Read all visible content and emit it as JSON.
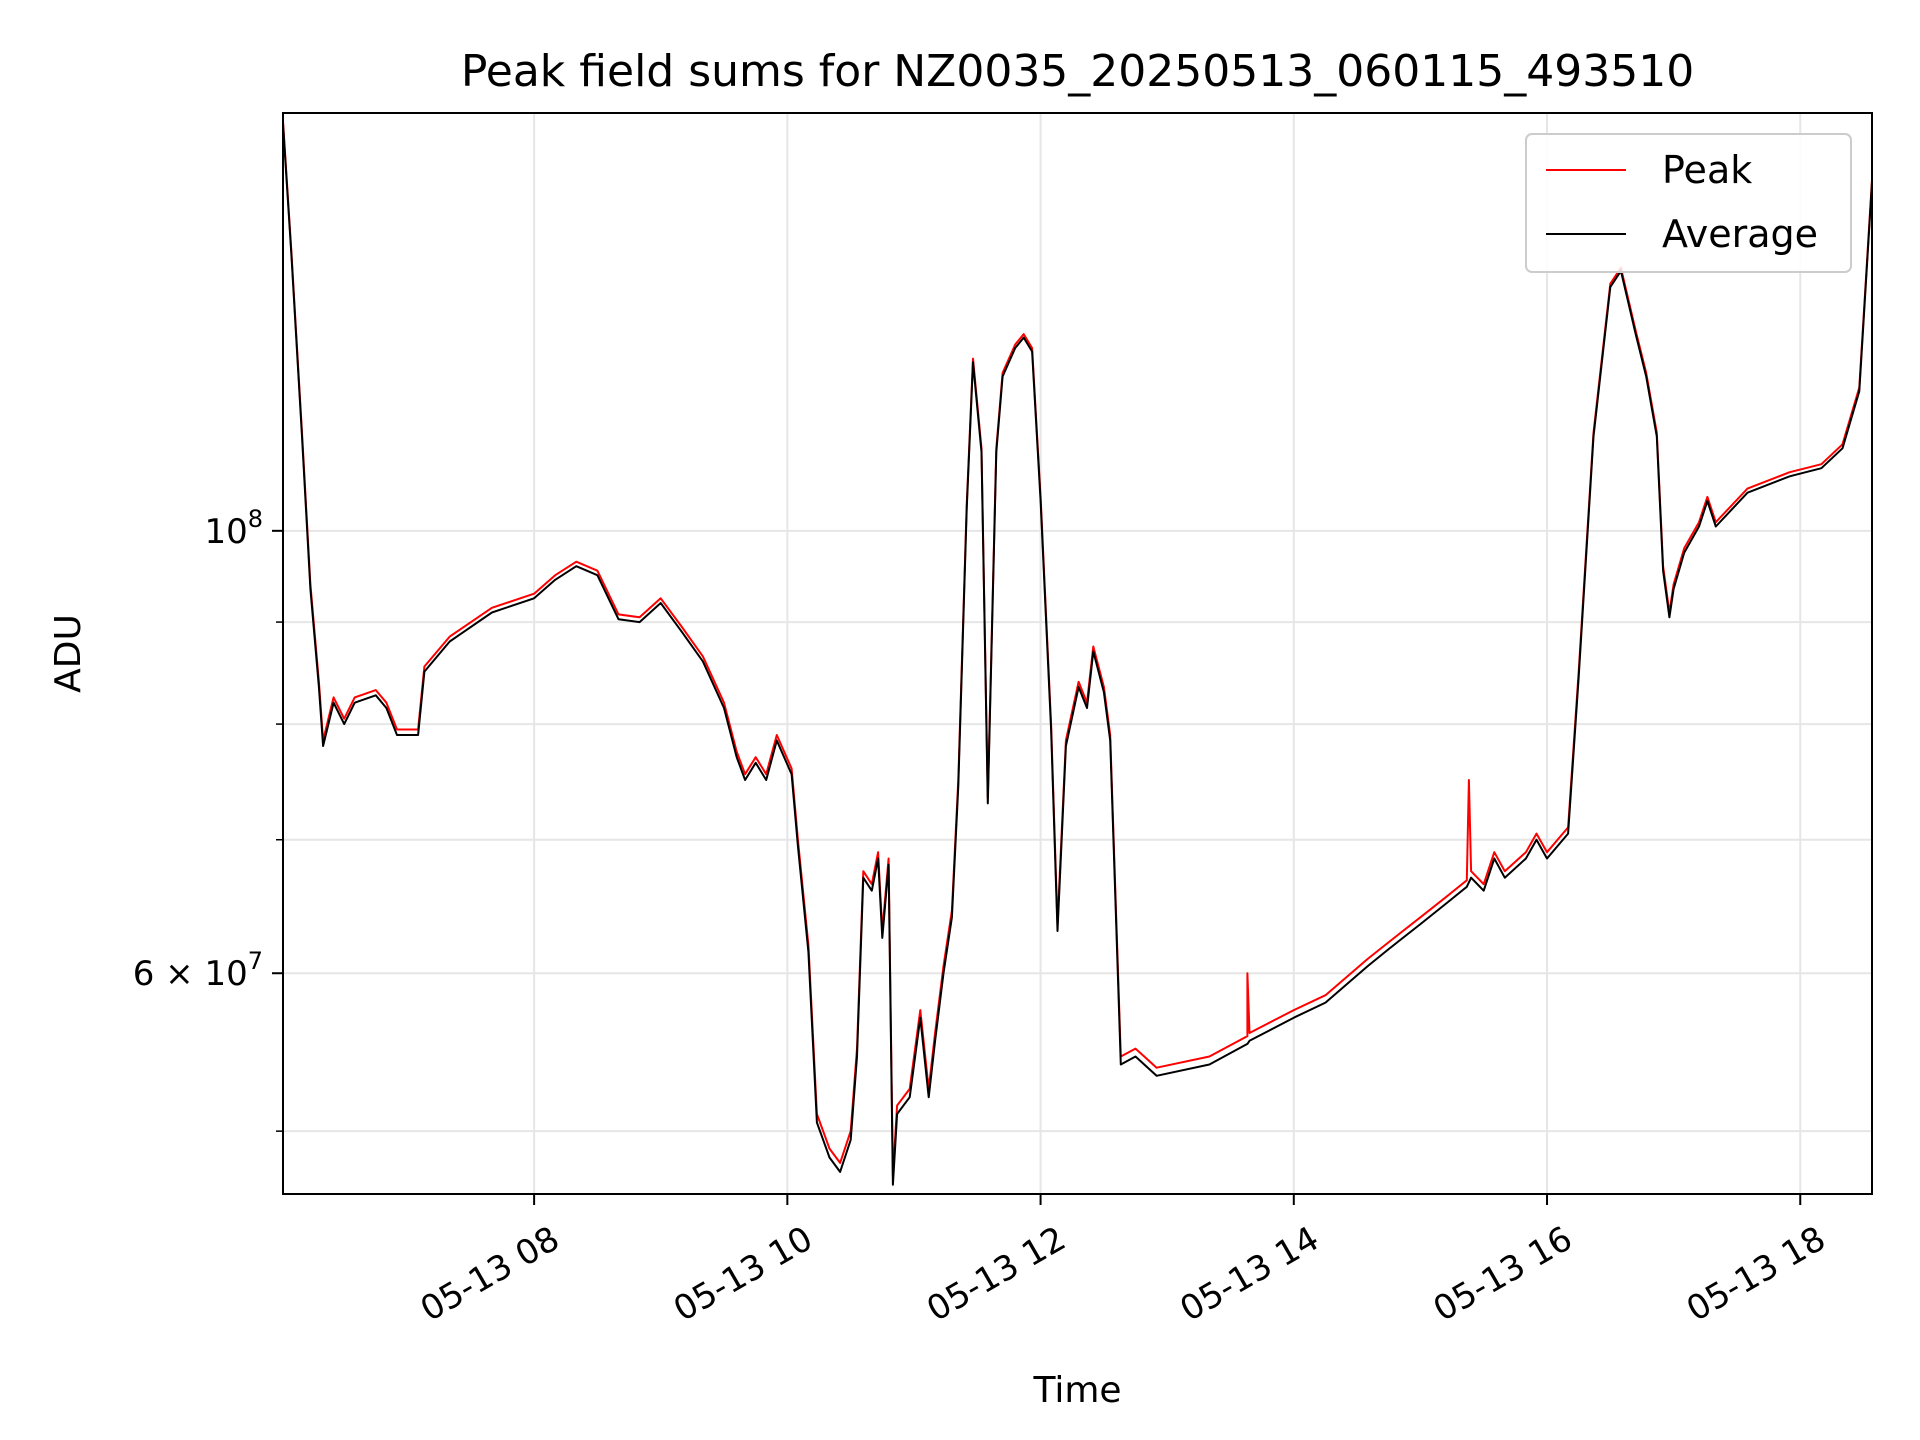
{
  "chart_data": {
    "type": "line",
    "title": "Peak field sums for NZ0035_20250513_060115_493510",
    "xlabel": "Time",
    "ylabel": "ADU",
    "y_scale": "log",
    "grid": true,
    "legend_position": "top-right",
    "xlim": [
      "2025-05-13 06:01",
      "2025-05-13 18:34"
    ],
    "ylim": [
      46500000,
      162000000
    ],
    "x_ticks": [
      {
        "value": "2025-05-13 08:00",
        "label": "05-13 08"
      },
      {
        "value": "2025-05-13 10:00",
        "label": "05-13 10"
      },
      {
        "value": "2025-05-13 12:00",
        "label": "05-13 12"
      },
      {
        "value": "2025-05-13 14:00",
        "label": "05-13 14"
      },
      {
        "value": "2025-05-13 16:00",
        "label": "05-13 16"
      },
      {
        "value": "2025-05-13 18:00",
        "label": "05-13 18"
      }
    ],
    "y_major_ticks": [
      {
        "value": 100000000,
        "base": "10",
        "exp": "8"
      },
      {
        "value": 60000000,
        "base": "6 × 10",
        "exp": "7"
      }
    ],
    "y_minor_ticks": [
      50000000,
      70000000,
      80000000,
      90000000
    ],
    "series": [
      {
        "name": "Peak",
        "color": "#ff0000",
        "points": [
          [
            "2025-05-13 06:01",
            160500000
          ],
          [
            "2025-05-13 06:05",
            138000000
          ],
          [
            "2025-05-13 06:10",
            112000000
          ],
          [
            "2025-05-13 06:14",
            94000000
          ],
          [
            "2025-05-13 06:18",
            84000000
          ],
          [
            "2025-05-13 06:20",
            78500000
          ],
          [
            "2025-05-13 06:25",
            82500000
          ],
          [
            "2025-05-13 06:30",
            80500000
          ],
          [
            "2025-05-13 06:35",
            82500000
          ],
          [
            "2025-05-13 06:45",
            83200000
          ],
          [
            "2025-05-13 06:50",
            82000000
          ],
          [
            "2025-05-13 06:55",
            79500000
          ],
          [
            "2025-05-13 07:05",
            79500000
          ],
          [
            "2025-05-13 07:08",
            85500000
          ],
          [
            "2025-05-13 07:20",
            88500000
          ],
          [
            "2025-05-13 07:40",
            91500000
          ],
          [
            "2025-05-13 08:00",
            93000000
          ],
          [
            "2025-05-13 08:10",
            95000000
          ],
          [
            "2025-05-13 08:20",
            96500000
          ],
          [
            "2025-05-13 08:30",
            95500000
          ],
          [
            "2025-05-13 08:40",
            90800000
          ],
          [
            "2025-05-13 08:50",
            90500000
          ],
          [
            "2025-05-13 09:00",
            92500000
          ],
          [
            "2025-05-13 09:10",
            89500000
          ],
          [
            "2025-05-13 09:20",
            86500000
          ],
          [
            "2025-05-13 09:30",
            82000000
          ],
          [
            "2025-05-13 09:36",
            77500000
          ],
          [
            "2025-05-13 09:40",
            75500000
          ],
          [
            "2025-05-13 09:45",
            77000000
          ],
          [
            "2025-05-13 09:50",
            75500000
          ],
          [
            "2025-05-13 09:55",
            79000000
          ],
          [
            "2025-05-13 10:02",
            76000000
          ],
          [
            "2025-05-13 10:05",
            70000000
          ],
          [
            "2025-05-13 10:10",
            62000000
          ],
          [
            "2025-05-13 10:14",
            51000000
          ],
          [
            "2025-05-13 10:20",
            49000000
          ],
          [
            "2025-05-13 10:25",
            48200000
          ],
          [
            "2025-05-13 10:30",
            50000000
          ],
          [
            "2025-05-13 10:33",
            55000000
          ],
          [
            "2025-05-13 10:36",
            67500000
          ],
          [
            "2025-05-13 10:40",
            66500000
          ],
          [
            "2025-05-13 10:43",
            69000000
          ],
          [
            "2025-05-13 10:45",
            63000000
          ],
          [
            "2025-05-13 10:48",
            68500000
          ],
          [
            "2025-05-13 10:50",
            47500000
          ],
          [
            "2025-05-13 10:52",
            51500000
          ],
          [
            "2025-05-13 10:58",
            52500000
          ],
          [
            "2025-05-13 11:03",
            57500000
          ],
          [
            "2025-05-13 11:07",
            52500000
          ],
          [
            "2025-05-13 11:10",
            56000000
          ],
          [
            "2025-05-13 11:14",
            60500000
          ],
          [
            "2025-05-13 11:18",
            64500000
          ],
          [
            "2025-05-13 11:21",
            75000000
          ],
          [
            "2025-05-13 11:25",
            103000000
          ],
          [
            "2025-05-13 11:28",
            122000000
          ],
          [
            "2025-05-13 11:32",
            110000000
          ],
          [
            "2025-05-13 11:35",
            73500000
          ],
          [
            "2025-05-13 11:39",
            110000000
          ],
          [
            "2025-05-13 11:42",
            120000000
          ],
          [
            "2025-05-13 11:48",
            124000000
          ],
          [
            "2025-05-13 11:52",
            125500000
          ],
          [
            "2025-05-13 11:56",
            123500000
          ],
          [
            "2025-05-13 12:00",
            104000000
          ],
          [
            "2025-05-13 12:05",
            80000000
          ],
          [
            "2025-05-13 12:08",
            63500000
          ],
          [
            "2025-05-13 12:12",
            78500000
          ],
          [
            "2025-05-13 12:18",
            84000000
          ],
          [
            "2025-05-13 12:22",
            82000000
          ],
          [
            "2025-05-13 12:25",
            87500000
          ],
          [
            "2025-05-13 12:30",
            83500000
          ],
          [
            "2025-05-13 12:33",
            79000000
          ],
          [
            "2025-05-13 12:38",
            54500000
          ],
          [
            "2025-05-13 12:45",
            55000000
          ],
          [
            "2025-05-13 12:55",
            53800000
          ],
          [
            "2025-05-13 13:20",
            54500000
          ],
          [
            "2025-05-13 13:38",
            55800000
          ],
          [
            "2025-05-13 13:38",
            60000000
          ],
          [
            "2025-05-13 13:39",
            56000000
          ],
          [
            "2025-05-13 14:00",
            57500000
          ],
          [
            "2025-05-13 14:15",
            58500000
          ],
          [
            "2025-05-13 14:35",
            61000000
          ],
          [
            "2025-05-13 14:45",
            62200000
          ],
          [
            "2025-05-13 15:00",
            64000000
          ],
          [
            "2025-05-13 15:12",
            65500000
          ],
          [
            "2025-05-13 15:22",
            66800000
          ],
          [
            "2025-05-13 15:23",
            75000000
          ],
          [
            "2025-05-13 15:24",
            67500000
          ],
          [
            "2025-05-13 15:30",
            66500000
          ],
          [
            "2025-05-13 15:35",
            69000000
          ],
          [
            "2025-05-13 15:40",
            67500000
          ],
          [
            "2025-05-13 15:50",
            69000000
          ],
          [
            "2025-05-13 15:55",
            70500000
          ],
          [
            "2025-05-13 16:00",
            69000000
          ],
          [
            "2025-05-13 16:10",
            71000000
          ],
          [
            "2025-05-13 16:15",
            85000000
          ],
          [
            "2025-05-13 16:22",
            112000000
          ],
          [
            "2025-05-13 16:30",
            133000000
          ],
          [
            "2025-05-13 16:35",
            135500000
          ],
          [
            "2025-05-13 16:42",
            126000000
          ],
          [
            "2025-05-13 16:47",
            120000000
          ],
          [
            "2025-05-13 16:52",
            112000000
          ],
          [
            "2025-05-13 16:55",
            96000000
          ],
          [
            "2025-05-13 16:58",
            91000000
          ],
          [
            "2025-05-13 17:00",
            94000000
          ],
          [
            "2025-05-13 17:05",
            98000000
          ],
          [
            "2025-05-13 17:12",
            101000000
          ],
          [
            "2025-05-13 17:16",
            104000000
          ],
          [
            "2025-05-13 17:20",
            101000000
          ],
          [
            "2025-05-13 17:35",
            105000000
          ],
          [
            "2025-05-13 17:55",
            107000000
          ],
          [
            "2025-05-13 18:10",
            108000000
          ],
          [
            "2025-05-13 18:20",
            110500000
          ],
          [
            "2025-05-13 18:28",
            118000000
          ],
          [
            "2025-05-13 18:34",
            150000000
          ]
        ]
      },
      {
        "name": "Average",
        "color": "#000000",
        "points": [
          [
            "2025-05-13 06:01",
            160000000
          ],
          [
            "2025-05-13 06:05",
            137500000
          ],
          [
            "2025-05-13 06:10",
            111500000
          ],
          [
            "2025-05-13 06:14",
            93500000
          ],
          [
            "2025-05-13 06:18",
            83500000
          ],
          [
            "2025-05-13 06:20",
            78000000
          ],
          [
            "2025-05-13 06:25",
            82000000
          ],
          [
            "2025-05-13 06:30",
            80000000
          ],
          [
            "2025-05-13 06:35",
            82000000
          ],
          [
            "2025-05-13 06:45",
            82700000
          ],
          [
            "2025-05-13 06:50",
            81500000
          ],
          [
            "2025-05-13 06:55",
            79000000
          ],
          [
            "2025-05-13 07:05",
            79000000
          ],
          [
            "2025-05-13 07:08",
            85000000
          ],
          [
            "2025-05-13 07:20",
            88000000
          ],
          [
            "2025-05-13 07:40",
            91000000
          ],
          [
            "2025-05-13 08:00",
            92500000
          ],
          [
            "2025-05-13 08:10",
            94500000
          ],
          [
            "2025-05-13 08:20",
            96000000
          ],
          [
            "2025-05-13 08:30",
            95000000
          ],
          [
            "2025-05-13 08:40",
            90300000
          ],
          [
            "2025-05-13 08:50",
            90000000
          ],
          [
            "2025-05-13 09:00",
            92000000
          ],
          [
            "2025-05-13 09:10",
            89000000
          ],
          [
            "2025-05-13 09:20",
            86000000
          ],
          [
            "2025-05-13 09:30",
            81500000
          ],
          [
            "2025-05-13 09:36",
            77000000
          ],
          [
            "2025-05-13 09:40",
            75000000
          ],
          [
            "2025-05-13 09:45",
            76500000
          ],
          [
            "2025-05-13 09:50",
            75000000
          ],
          [
            "2025-05-13 09:55",
            78500000
          ],
          [
            "2025-05-13 10:02",
            75500000
          ],
          [
            "2025-05-13 10:05",
            69500000
          ],
          [
            "2025-05-13 10:10",
            61500000
          ],
          [
            "2025-05-13 10:14",
            50500000
          ],
          [
            "2025-05-13 10:20",
            48500000
          ],
          [
            "2025-05-13 10:25",
            47700000
          ],
          [
            "2025-05-13 10:30",
            49500000
          ],
          [
            "2025-05-13 10:33",
            54500000
          ],
          [
            "2025-05-13 10:36",
            67000000
          ],
          [
            "2025-05-13 10:40",
            66000000
          ],
          [
            "2025-05-13 10:43",
            68500000
          ],
          [
            "2025-05-13 10:45",
            62500000
          ],
          [
            "2025-05-13 10:48",
            68000000
          ],
          [
            "2025-05-13 10:50",
            47000000
          ],
          [
            "2025-05-13 10:52",
            51000000
          ],
          [
            "2025-05-13 10:58",
            52000000
          ],
          [
            "2025-05-13 11:03",
            57000000
          ],
          [
            "2025-05-13 11:07",
            52000000
          ],
          [
            "2025-05-13 11:10",
            55500000
          ],
          [
            "2025-05-13 11:14",
            60000000
          ],
          [
            "2025-05-13 11:18",
            64000000
          ],
          [
            "2025-05-13 11:21",
            74500000
          ],
          [
            "2025-05-13 11:25",
            102500000
          ],
          [
            "2025-05-13 11:28",
            121500000
          ],
          [
            "2025-05-13 11:32",
            109500000
          ],
          [
            "2025-05-13 11:35",
            73000000
          ],
          [
            "2025-05-13 11:39",
            109500000
          ],
          [
            "2025-05-13 11:42",
            119500000
          ],
          [
            "2025-05-13 11:48",
            123500000
          ],
          [
            "2025-05-13 11:52",
            125000000
          ],
          [
            "2025-05-13 11:56",
            123000000
          ],
          [
            "2025-05-13 12:00",
            103500000
          ],
          [
            "2025-05-13 12:05",
            79500000
          ],
          [
            "2025-05-13 12:08",
            63000000
          ],
          [
            "2025-05-13 12:12",
            78000000
          ],
          [
            "2025-05-13 12:18",
            83500000
          ],
          [
            "2025-05-13 12:22",
            81500000
          ],
          [
            "2025-05-13 12:25",
            87000000
          ],
          [
            "2025-05-13 12:30",
            83000000
          ],
          [
            "2025-05-13 12:33",
            78500000
          ],
          [
            "2025-05-13 12:38",
            54000000
          ],
          [
            "2025-05-13 12:45",
            54500000
          ],
          [
            "2025-05-13 12:55",
            53300000
          ],
          [
            "2025-05-13 13:20",
            54000000
          ],
          [
            "2025-05-13 13:38",
            55300000
          ],
          [
            "2025-05-13 13:39",
            55500000
          ],
          [
            "2025-05-13 14:00",
            57000000
          ],
          [
            "2025-05-13 14:15",
            58000000
          ],
          [
            "2025-05-13 14:35",
            60500000
          ],
          [
            "2025-05-13 14:45",
            61700000
          ],
          [
            "2025-05-13 15:00",
            63500000
          ],
          [
            "2025-05-13 15:12",
            65000000
          ],
          [
            "2025-05-13 15:22",
            66300000
          ],
          [
            "2025-05-13 15:24",
            67000000
          ],
          [
            "2025-05-13 15:30",
            66000000
          ],
          [
            "2025-05-13 15:35",
            68500000
          ],
          [
            "2025-05-13 15:40",
            67000000
          ],
          [
            "2025-05-13 15:50",
            68500000
          ],
          [
            "2025-05-13 15:55",
            70000000
          ],
          [
            "2025-05-13 16:00",
            68500000
          ],
          [
            "2025-05-13 16:10",
            70500000
          ],
          [
            "2025-05-13 16:15",
            84500000
          ],
          [
            "2025-05-13 16:22",
            111500000
          ],
          [
            "2025-05-13 16:30",
            132500000
          ],
          [
            "2025-05-13 16:35",
            135000000
          ],
          [
            "2025-05-13 16:42",
            125500000
          ],
          [
            "2025-05-13 16:47",
            119500000
          ],
          [
            "2025-05-13 16:52",
            111500000
          ],
          [
            "2025-05-13 16:55",
            95500000
          ],
          [
            "2025-05-13 16:58",
            90500000
          ],
          [
            "2025-05-13 17:00",
            93500000
          ],
          [
            "2025-05-13 17:05",
            97500000
          ],
          [
            "2025-05-13 17:12",
            100500000
          ],
          [
            "2025-05-13 17:16",
            103500000
          ],
          [
            "2025-05-13 17:20",
            100500000
          ],
          [
            "2025-05-13 17:35",
            104500000
          ],
          [
            "2025-05-13 17:55",
            106500000
          ],
          [
            "2025-05-13 18:10",
            107500000
          ],
          [
            "2025-05-13 18:20",
            110000000
          ],
          [
            "2025-05-13 18:28",
            117500000
          ],
          [
            "2025-05-13 18:34",
            149500000
          ]
        ]
      }
    ]
  }
}
